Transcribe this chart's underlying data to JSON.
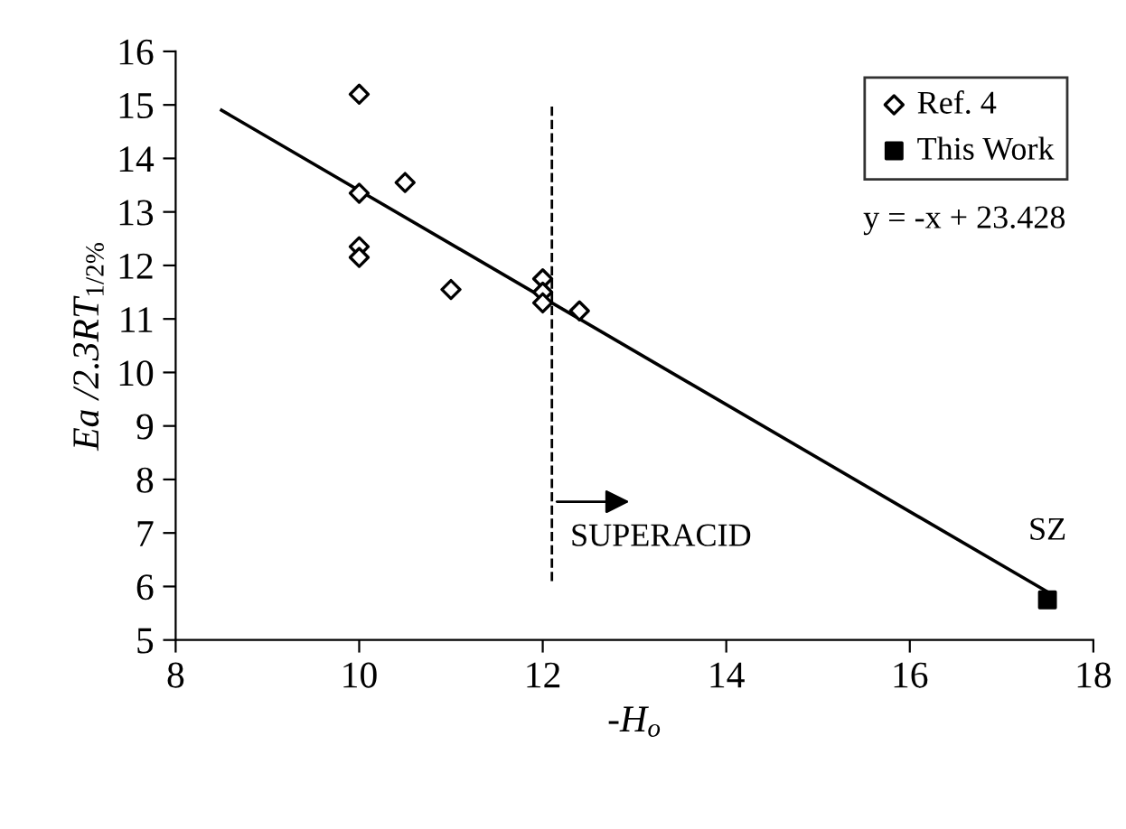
{
  "chart_data": {
    "type": "scatter",
    "xlabel": "-H$_{o}$",
    "ylabel": "Ea /2.3RT$_{1/2%}$",
    "xlim": [
      8,
      18
    ],
    "xticks": [
      8,
      10,
      12,
      14,
      16,
      18
    ],
    "ylim": [
      5,
      16
    ],
    "yticks": [
      5,
      6,
      7,
      8,
      9,
      10,
      11,
      12,
      13,
      14,
      15,
      16
    ],
    "grid": false,
    "legend": "top right",
    "series": [
      {
        "name": "Ref. 4",
        "marker": "diamond",
        "color": "#000000",
        "x": [
          10,
          10,
          10,
          10,
          10.5,
          11,
          12,
          12,
          12,
          12.4
        ],
        "values": [
          15.2,
          13.35,
          12.35,
          12.15,
          13.55,
          11.55,
          11.75,
          11.5,
          11.3,
          11.15
        ]
      },
      {
        "name": "This Work",
        "marker": "square",
        "color": "#000000",
        "x": [
          17.5
        ],
        "values": [
          5.75
        ]
      },
      {
        "type": "line",
        "line_style": "solid",
        "marker": "none",
        "color": "#000000",
        "x": [
          8.5,
          17.5
        ],
        "values": [
          14.9,
          5.9
        ]
      }
    ],
    "ref_lines": [
      {
        "axis": "x",
        "value": 12.1,
        "label": "SUPERACID",
        "line_style": "dashed",
        "color": "#000000"
      }
    ],
    "annotations": [
      "y = -x + 23.428",
      {
        "text": "SZ",
        "x": 17.5,
        "y": 5.75
      }
    ]
  }
}
